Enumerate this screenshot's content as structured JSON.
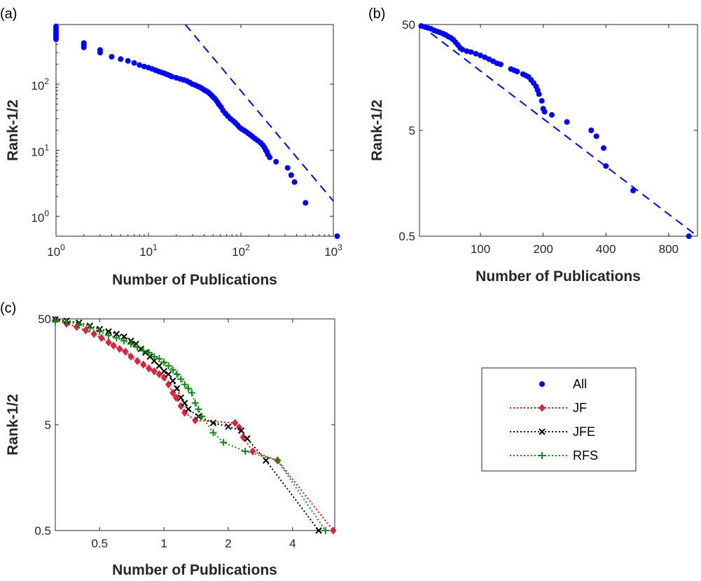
{
  "colors": {
    "all": "#0000FF",
    "jf": "#D7263D",
    "jf_line": "#FF0000",
    "jfe": "#000000",
    "rfs": "#138A13"
  },
  "legend": {
    "entries": [
      {
        "label": "All",
        "marker": "dot",
        "color": "#0000FF",
        "line": "none"
      },
      {
        "label": "JF",
        "marker": "diamond",
        "color": "#D7263D",
        "line": "dotted"
      },
      {
        "label": "JFE",
        "marker": "x",
        "color": "#000000",
        "line": "dotted"
      },
      {
        "label": "RFS",
        "marker": "plus",
        "color": "#138A13",
        "line": "dotted"
      }
    ]
  },
  "chart_data": [
    {
      "panel": "(a)",
      "type": "scatter",
      "xlabel": "Number of Publications",
      "ylabel": "Rank-1/2",
      "xscale": "log",
      "yscale": "log",
      "xlim": [
        1,
        1000
      ],
      "ylim": [
        0.5,
        800
      ],
      "xticks": [
        {
          "value": 1,
          "base": "10",
          "exp": "0"
        },
        {
          "value": 10,
          "base": "10",
          "exp": "1"
        },
        {
          "value": 100,
          "base": "10",
          "exp": "2"
        },
        {
          "value": 1000,
          "base": "10",
          "exp": "3"
        }
      ],
      "yticks": [
        {
          "value": 1,
          "base": "10",
          "exp": "0"
        },
        {
          "value": 10,
          "base": "10",
          "exp": "1"
        },
        {
          "value": 100,
          "base": "10",
          "exp": "2"
        }
      ],
      "series": [
        {
          "marker": "dot",
          "points": [
            [
              1,
              750
            ],
            [
              1,
              700
            ],
            [
              1,
              650
            ],
            [
              1,
              600
            ],
            [
              1,
              560
            ],
            [
              1,
              520
            ],
            [
              1,
              480
            ],
            [
              2,
              420
            ],
            [
              2,
              390
            ],
            [
              2,
              360
            ],
            [
              3,
              330
            ],
            [
              3,
              300
            ],
            [
              4,
              260
            ],
            [
              5,
              240
            ],
            [
              6,
              225
            ],
            [
              7,
              210
            ],
            [
              8,
              195
            ],
            [
              9,
              185
            ],
            [
              10,
              178
            ],
            [
              11,
              170
            ],
            [
              12,
              162
            ],
            [
              13,
              155
            ],
            [
              14,
              150
            ],
            [
              15,
              145
            ],
            [
              16,
              140
            ],
            [
              17,
              135
            ],
            [
              18,
              130
            ],
            [
              20,
              125
            ],
            [
              22,
              120
            ],
            [
              24,
              116
            ],
            [
              26,
              112
            ],
            [
              28,
              106
            ],
            [
              30,
              100
            ],
            [
              32,
              97
            ],
            [
              34,
              93
            ],
            [
              36,
              90
            ],
            [
              38,
              86
            ],
            [
              40,
              82
            ],
            [
              42,
              79
            ],
            [
              44,
              76
            ],
            [
              46,
              72
            ],
            [
              48,
              68
            ],
            [
              50,
              64
            ],
            [
              52,
              61
            ],
            [
              54,
              57
            ],
            [
              56,
              53
            ],
            [
              58,
              49
            ],
            [
              61,
              45
            ],
            [
              64,
              40
            ],
            [
              68,
              36
            ],
            [
              72,
              33
            ],
            [
              77,
              30
            ],
            [
              82,
              28
            ],
            [
              87,
              26
            ],
            [
              92,
              24
            ],
            [
              97,
              22
            ],
            [
              102,
              21
            ],
            [
              108,
              20
            ],
            [
              114,
              19
            ],
            [
              120,
              18
            ],
            [
              127,
              17
            ],
            [
              134,
              16
            ],
            [
              142,
              15
            ],
            [
              152,
              14
            ],
            [
              163,
              13
            ],
            [
              172,
              12
            ],
            [
              180,
              11
            ],
            [
              186,
              10
            ],
            [
              191,
              9.5
            ],
            [
              196,
              8.6
            ],
            [
              205,
              7.8
            ],
            [
              240,
              6.7
            ],
            [
              320,
              5.4
            ],
            [
              350,
              4.2
            ],
            [
              380,
              3.3
            ],
            [
              500,
              1.6
            ],
            [
              1100,
              0.5
            ]
          ]
        },
        {
          "line": "dashed",
          "points": [
            [
              25,
              800
            ],
            [
              1000,
              1.7
            ]
          ]
        }
      ]
    },
    {
      "panel": "(b)",
      "type": "scatter",
      "xlabel": "Number of Publications",
      "ylabel": "Rank-1/2",
      "xscale": "log",
      "yscale": "log",
      "xlim": [
        51,
        1100
      ],
      "ylim": [
        0.5,
        50
      ],
      "xticks": [
        {
          "value": 100,
          "label": "100"
        },
        {
          "value": 200,
          "label": "200"
        },
        {
          "value": 400,
          "label": "400"
        },
        {
          "value": 800,
          "label": "800"
        }
      ],
      "yticks": [
        {
          "value": 0.5,
          "label": "0.5"
        },
        {
          "value": 5,
          "label": "5"
        },
        {
          "value": 50,
          "label": "50"
        }
      ],
      "series": [
        {
          "marker": "dot",
          "points": [
            [
              52,
              48.5
            ],
            [
              54,
              47.5
            ],
            [
              56,
              46.5
            ],
            [
              58,
              45.5
            ],
            [
              60,
              44
            ],
            [
              62,
              43
            ],
            [
              64,
              42
            ],
            [
              66,
              41
            ],
            [
              68,
              40
            ],
            [
              70,
              38.5
            ],
            [
              72,
              37.5
            ],
            [
              74,
              36
            ],
            [
              76,
              34
            ],
            [
              78,
              32
            ],
            [
              80,
              30
            ],
            [
              82,
              29
            ],
            [
              86,
              28
            ],
            [
              90,
              27.5
            ],
            [
              95,
              26.5
            ],
            [
              100,
              25.5
            ],
            [
              105,
              24.5
            ],
            [
              110,
              23.5
            ],
            [
              115,
              22.5
            ],
            [
              120,
              21.5
            ],
            [
              125,
              21
            ],
            [
              140,
              19
            ],
            [
              145,
              18.5
            ],
            [
              150,
              18
            ],
            [
              160,
              17
            ],
            [
              165,
              16.5
            ],
            [
              170,
              16
            ],
            [
              175,
              15
            ],
            [
              180,
              14
            ],
            [
              185,
              13
            ],
            [
              188,
              12
            ],
            [
              191,
              11
            ],
            [
              197,
              9.5
            ],
            [
              200,
              8
            ],
            [
              203,
              7.5
            ],
            [
              220,
              7
            ],
            [
              260,
              6
            ],
            [
              340,
              5
            ],
            [
              360,
              4.4
            ],
            [
              390,
              3.4
            ],
            [
              400,
              2.3
            ],
            [
              540,
              1.35
            ],
            [
              1000,
              0.5
            ]
          ]
        },
        {
          "line": "dashed",
          "points": [
            [
              51,
              50
            ],
            [
              1100,
              0.5
            ]
          ]
        }
      ]
    },
    {
      "panel": "(c)",
      "type": "line",
      "xlabel": "Number of Publications",
      "ylabel": "Rank-1/2",
      "xscale": "log",
      "yscale": "log",
      "xlim": [
        0.31,
        6.3
      ],
      "ylim": [
        0.5,
        50
      ],
      "xticks": [
        {
          "value": 0.5,
          "label": "0.5"
        },
        {
          "value": 1,
          "label": "1"
        },
        {
          "value": 2,
          "label": "2"
        },
        {
          "value": 4,
          "label": "4"
        }
      ],
      "yticks": [
        {
          "value": 0.5,
          "label": "0.5"
        },
        {
          "value": 5,
          "label": "5"
        },
        {
          "value": 50,
          "label": "50"
        }
      ],
      "series": [
        {
          "name": "JF",
          "marker": "diamond",
          "line": "dotted",
          "color": "#D7263D",
          "points": [
            [
              0.31,
              49
            ],
            [
              0.35,
              45
            ],
            [
              0.39,
              42
            ],
            [
              0.43,
              39
            ],
            [
              0.47,
              36
            ],
            [
              0.51,
              33
            ],
            [
              0.55,
              30
            ],
            [
              0.58,
              28
            ],
            [
              0.62,
              26
            ],
            [
              0.66,
              24.5
            ],
            [
              0.7,
              22
            ],
            [
              0.75,
              20
            ],
            [
              0.8,
              18.5
            ],
            [
              0.85,
              17
            ],
            [
              0.9,
              16
            ],
            [
              0.95,
              15
            ],
            [
              1.0,
              14
            ],
            [
              1.05,
              12
            ],
            [
              1.1,
              10
            ],
            [
              1.14,
              9
            ],
            [
              1.2,
              7.5
            ],
            [
              1.25,
              6.5
            ],
            [
              1.4,
              5.5
            ],
            [
              2.15,
              5.2
            ],
            [
              2.25,
              4.7
            ],
            [
              2.35,
              3.8
            ],
            [
              2.6,
              2.8
            ],
            [
              3.4,
              2.3
            ],
            [
              6.2,
              0.5
            ]
          ]
        },
        {
          "name": "JFE",
          "marker": "x",
          "line": "dotted",
          "color": "#000000",
          "points": [
            [
              0.31,
              49.5
            ],
            [
              0.35,
              48
            ],
            [
              0.4,
              46
            ],
            [
              0.45,
              43
            ],
            [
              0.5,
              40
            ],
            [
              0.55,
              38
            ],
            [
              0.6,
              36
            ],
            [
              0.65,
              34
            ],
            [
              0.7,
              31
            ],
            [
              0.74,
              29
            ],
            [
              0.78,
              26
            ],
            [
              0.82,
              24
            ],
            [
              0.86,
              22
            ],
            [
              0.9,
              20
            ],
            [
              0.95,
              18
            ],
            [
              1.0,
              16
            ],
            [
              1.05,
              15
            ],
            [
              1.1,
              13
            ],
            [
              1.15,
              11
            ],
            [
              1.2,
              9
            ],
            [
              1.25,
              8
            ],
            [
              1.3,
              7
            ],
            [
              1.45,
              6
            ],
            [
              1.7,
              5.2
            ],
            [
              2.0,
              4.8
            ],
            [
              2.3,
              4.4
            ],
            [
              2.45,
              3.7
            ],
            [
              3.0,
              2.3
            ],
            [
              5.3,
              0.5
            ]
          ]
        },
        {
          "name": "RFS",
          "marker": "plus",
          "line": "dotted",
          "color": "#138A13",
          "points": [
            [
              0.31,
              48
            ],
            [
              0.35,
              47
            ],
            [
              0.4,
              44
            ],
            [
              0.45,
              41
            ],
            [
              0.5,
              38
            ],
            [
              0.55,
              35
            ],
            [
              0.6,
              33
            ],
            [
              0.65,
              31
            ],
            [
              0.7,
              29
            ],
            [
              0.75,
              27
            ],
            [
              0.8,
              25
            ],
            [
              0.85,
              24
            ],
            [
              0.9,
              22
            ],
            [
              0.95,
              21
            ],
            [
              1.0,
              19.5
            ],
            [
              1.05,
              18
            ],
            [
              1.1,
              16.5
            ],
            [
              1.15,
              15
            ],
            [
              1.2,
              13.5
            ],
            [
              1.25,
              12
            ],
            [
              1.3,
              11
            ],
            [
              1.35,
              10
            ],
            [
              1.4,
              8
            ],
            [
              1.45,
              7
            ],
            [
              1.5,
              6
            ],
            [
              1.7,
              4.2
            ],
            [
              1.9,
              3.4
            ],
            [
              2.4,
              2.8
            ],
            [
              3.4,
              2.3
            ],
            [
              5.7,
              0.5
            ]
          ]
        }
      ]
    }
  ]
}
